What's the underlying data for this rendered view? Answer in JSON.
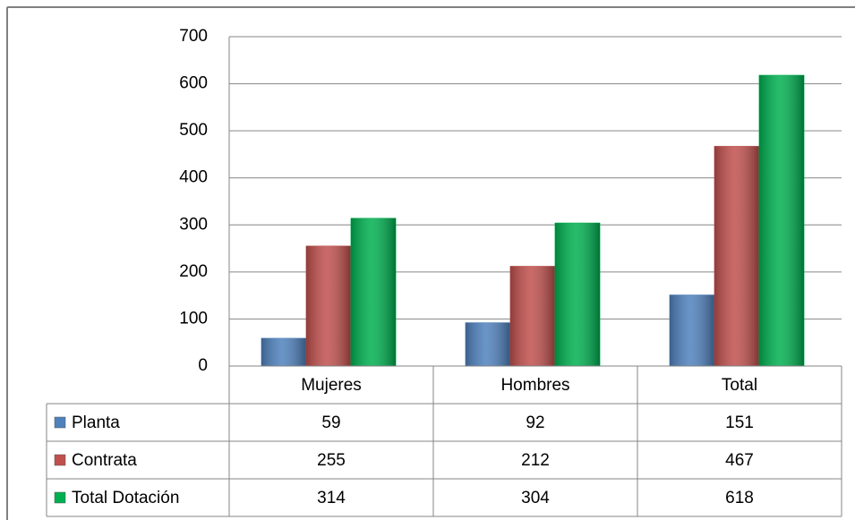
{
  "chart_data": {
    "type": "bar",
    "categories": [
      "Mujeres",
      "Hombres",
      "Total"
    ],
    "series": [
      {
        "name": "Planta",
        "color": "#4f81bd",
        "values": [
          59,
          92,
          151
        ]
      },
      {
        "name": "Contrata",
        "color": "#c0504d",
        "values": [
          255,
          212,
          467
        ]
      },
      {
        "name": "Total Dotación",
        "color": "#00b050",
        "values": [
          314,
          304,
          618
        ]
      }
    ],
    "ylim": [
      0,
      700
    ],
    "yticks": [
      0,
      100,
      200,
      300,
      400,
      500,
      600,
      700
    ],
    "grid": true,
    "legend": "table"
  }
}
